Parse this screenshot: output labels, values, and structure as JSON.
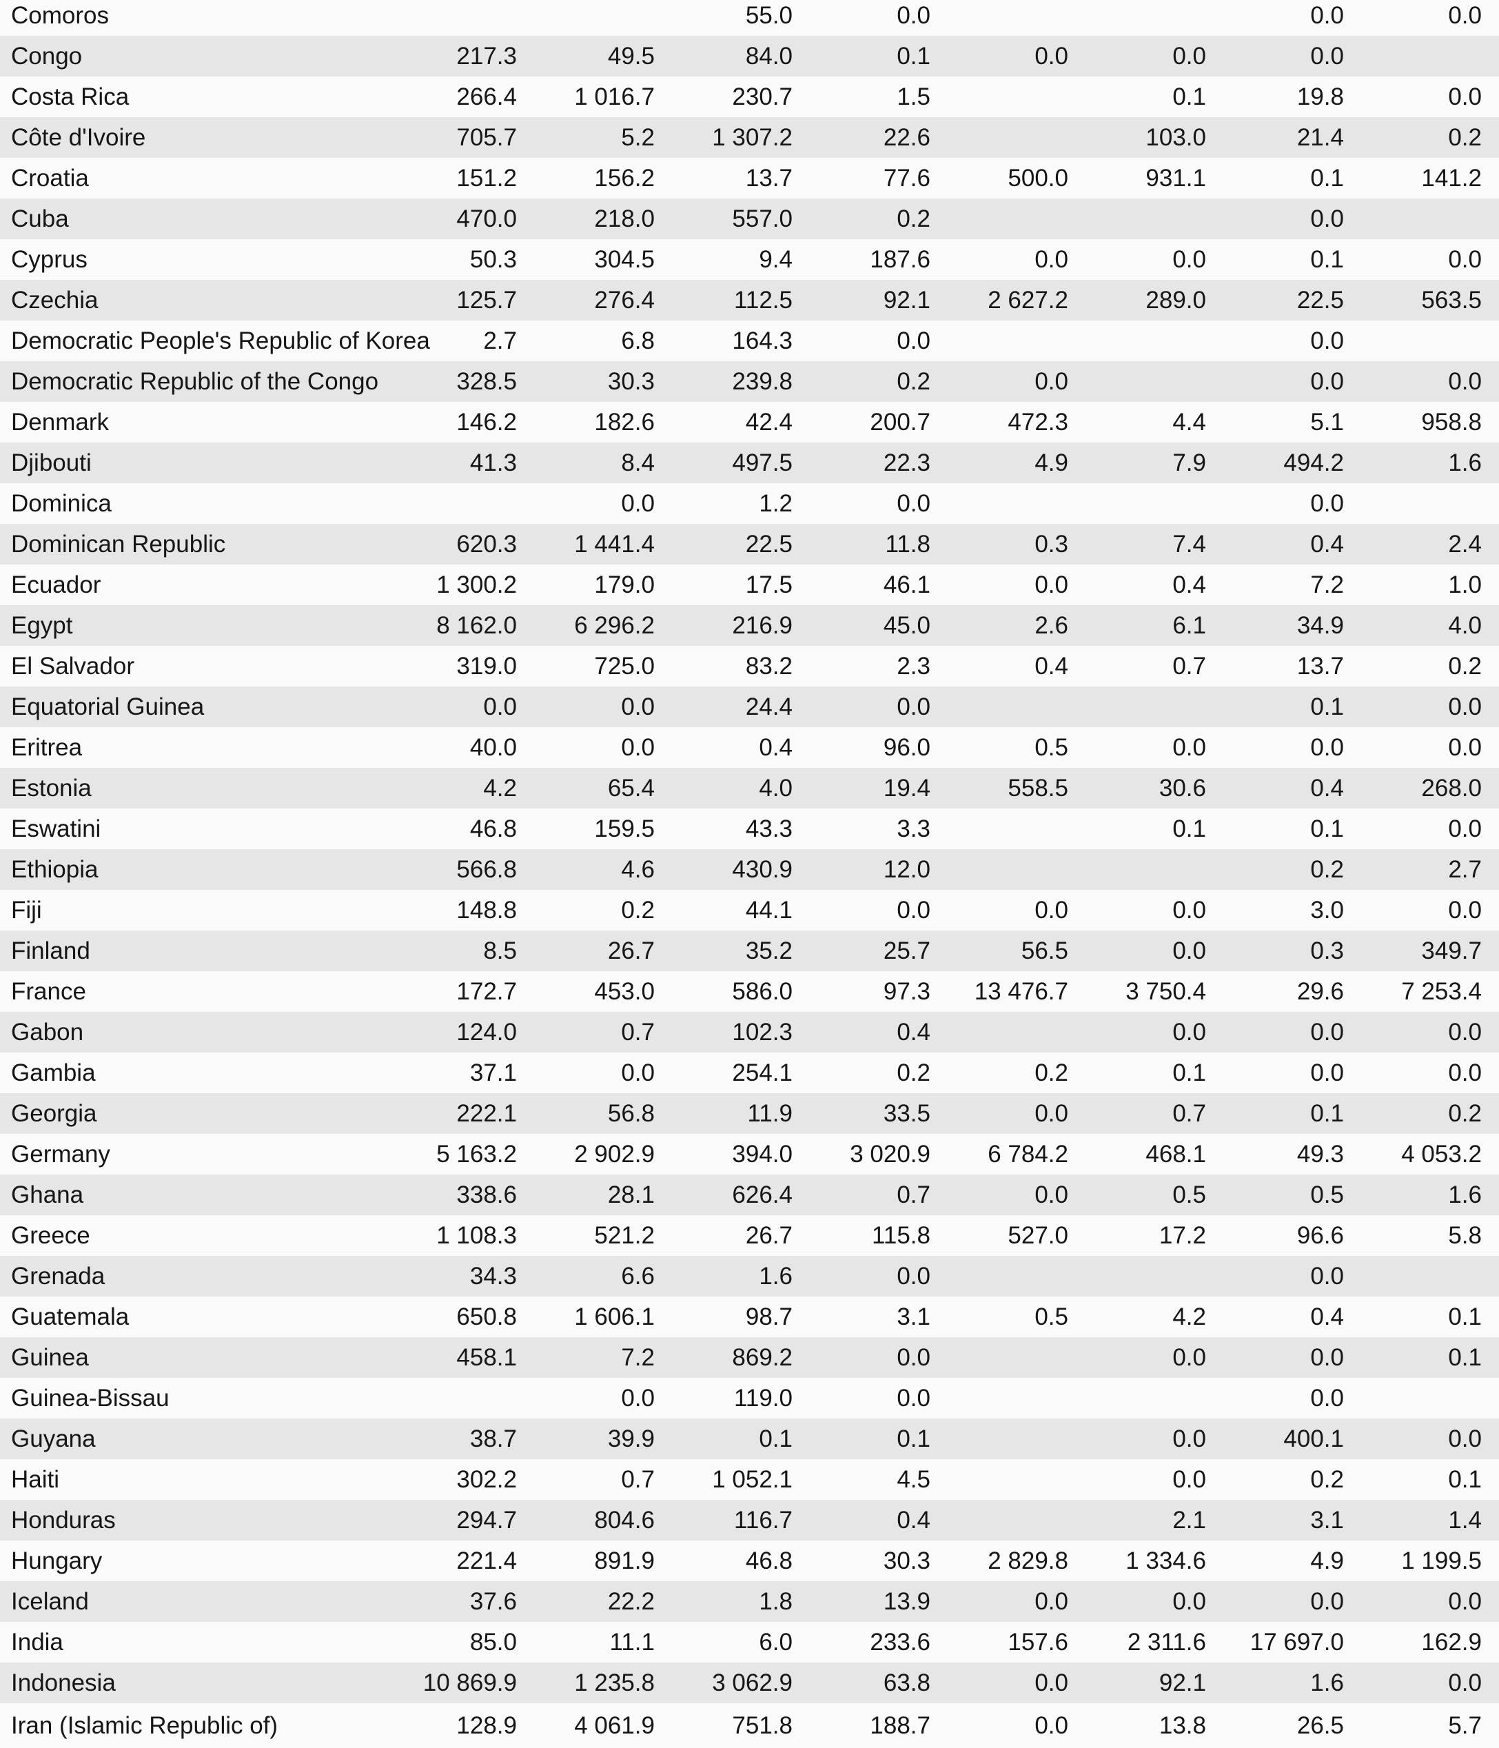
{
  "style": {
    "row_color_odd": "#fafafa",
    "row_color_even": "#e6e6e6",
    "text_color": "#161616"
  },
  "table": {
    "value_columns_count": 8,
    "rows": [
      {
        "country": "Comoros",
        "values": [
          "",
          "",
          "55.0",
          "0.0",
          "",
          "",
          "0.0",
          "0.0"
        ]
      },
      {
        "country": "Congo",
        "values": [
          "217.3",
          "49.5",
          "84.0",
          "0.1",
          "0.0",
          "0.0",
          "0.0",
          ""
        ]
      },
      {
        "country": "Costa Rica",
        "values": [
          "266.4",
          "1 016.7",
          "230.7",
          "1.5",
          "",
          "0.1",
          "19.8",
          "0.0"
        ]
      },
      {
        "country": "Côte d'Ivoire",
        "values": [
          "705.7",
          "5.2",
          "1 307.2",
          "22.6",
          "",
          "103.0",
          "21.4",
          "0.2"
        ]
      },
      {
        "country": "Croatia",
        "values": [
          "151.2",
          "156.2",
          "13.7",
          "77.6",
          "500.0",
          "931.1",
          "0.1",
          "141.2"
        ]
      },
      {
        "country": "Cuba",
        "values": [
          "470.0",
          "218.0",
          "557.0",
          "0.2",
          "",
          "",
          "0.0",
          ""
        ]
      },
      {
        "country": "Cyprus",
        "values": [
          "50.3",
          "304.5",
          "9.4",
          "187.6",
          "0.0",
          "0.0",
          "0.1",
          "0.0"
        ]
      },
      {
        "country": "Czechia",
        "values": [
          "125.7",
          "276.4",
          "112.5",
          "92.1",
          "2 627.2",
          "289.0",
          "22.5",
          "563.5"
        ]
      },
      {
        "country": "Democratic People's Republic of Korea",
        "values": [
          "2.7",
          "6.8",
          "164.3",
          "0.0",
          "",
          "",
          "0.0",
          ""
        ]
      },
      {
        "country": "Democratic Republic of the Congo",
        "values": [
          "328.5",
          "30.3",
          "239.8",
          "0.2",
          "0.0",
          "",
          "0.0",
          "0.0"
        ]
      },
      {
        "country": "Denmark",
        "values": [
          "146.2",
          "182.6",
          "42.4",
          "200.7",
          "472.3",
          "4.4",
          "5.1",
          "958.8"
        ]
      },
      {
        "country": "Djibouti",
        "values": [
          "41.3",
          "8.4",
          "497.5",
          "22.3",
          "4.9",
          "7.9",
          "494.2",
          "1.6"
        ]
      },
      {
        "country": "Dominica",
        "values": [
          "",
          "0.0",
          "1.2",
          "0.0",
          "",
          "",
          "0.0",
          ""
        ]
      },
      {
        "country": "Dominican Republic",
        "values": [
          "620.3",
          "1 441.4",
          "22.5",
          "11.8",
          "0.3",
          "7.4",
          "0.4",
          "2.4"
        ]
      },
      {
        "country": "Ecuador",
        "values": [
          "1 300.2",
          "179.0",
          "17.5",
          "46.1",
          "0.0",
          "0.4",
          "7.2",
          "1.0"
        ]
      },
      {
        "country": "Egypt",
        "values": [
          "8 162.0",
          "6 296.2",
          "216.9",
          "45.0",
          "2.6",
          "6.1",
          "34.9",
          "4.0"
        ]
      },
      {
        "country": "El Salvador",
        "values": [
          "319.0",
          "725.0",
          "83.2",
          "2.3",
          "0.4",
          "0.7",
          "13.7",
          "0.2"
        ]
      },
      {
        "country": "Equatorial Guinea",
        "values": [
          "0.0",
          "0.0",
          "24.4",
          "0.0",
          "",
          "",
          "0.1",
          "0.0"
        ]
      },
      {
        "country": "Eritrea",
        "values": [
          "40.0",
          "0.0",
          "0.4",
          "96.0",
          "0.5",
          "0.0",
          "0.0",
          "0.0"
        ]
      },
      {
        "country": "Estonia",
        "values": [
          "4.2",
          "65.4",
          "4.0",
          "19.4",
          "558.5",
          "30.6",
          "0.4",
          "268.0"
        ]
      },
      {
        "country": "Eswatini",
        "values": [
          "46.8",
          "159.5",
          "43.3",
          "3.3",
          "",
          "0.1",
          "0.1",
          "0.0"
        ]
      },
      {
        "country": "Ethiopia",
        "values": [
          "566.8",
          "4.6",
          "430.9",
          "12.0",
          "",
          "",
          "0.2",
          "2.7"
        ]
      },
      {
        "country": "Fiji",
        "values": [
          "148.8",
          "0.2",
          "44.1",
          "0.0",
          "0.0",
          "0.0",
          "3.0",
          "0.0"
        ]
      },
      {
        "country": "Finland",
        "values": [
          "8.5",
          "26.7",
          "35.2",
          "25.7",
          "56.5",
          "0.0",
          "0.3",
          "349.7"
        ]
      },
      {
        "country": "France",
        "values": [
          "172.7",
          "453.0",
          "586.0",
          "97.3",
          "13 476.7",
          "3 750.4",
          "29.6",
          "7 253.4"
        ]
      },
      {
        "country": "Gabon",
        "values": [
          "124.0",
          "0.7",
          "102.3",
          "0.4",
          "",
          "0.0",
          "0.0",
          "0.0"
        ]
      },
      {
        "country": "Gambia",
        "values": [
          "37.1",
          "0.0",
          "254.1",
          "0.2",
          "0.2",
          "0.1",
          "0.0",
          "0.0"
        ]
      },
      {
        "country": "Georgia",
        "values": [
          "222.1",
          "56.8",
          "11.9",
          "33.5",
          "0.0",
          "0.7",
          "0.1",
          "0.2"
        ]
      },
      {
        "country": "Germany",
        "values": [
          "5 163.2",
          "2 902.9",
          "394.0",
          "3 020.9",
          "6 784.2",
          "468.1",
          "49.3",
          "4 053.2"
        ]
      },
      {
        "country": "Ghana",
        "values": [
          "338.6",
          "28.1",
          "626.4",
          "0.7",
          "0.0",
          "0.5",
          "0.5",
          "1.6"
        ]
      },
      {
        "country": "Greece",
        "values": [
          "1 108.3",
          "521.2",
          "26.7",
          "115.8",
          "527.0",
          "17.2",
          "96.6",
          "5.8"
        ]
      },
      {
        "country": "Grenada",
        "values": [
          "34.3",
          "6.6",
          "1.6",
          "0.0",
          "",
          "",
          "0.0",
          ""
        ]
      },
      {
        "country": "Guatemala",
        "values": [
          "650.8",
          "1 606.1",
          "98.7",
          "3.1",
          "0.5",
          "4.2",
          "0.4",
          "0.1"
        ]
      },
      {
        "country": "Guinea",
        "values": [
          "458.1",
          "7.2",
          "869.2",
          "0.0",
          "",
          "0.0",
          "0.0",
          "0.1"
        ]
      },
      {
        "country": "Guinea-Bissau",
        "values": [
          "",
          "0.0",
          "119.0",
          "0.0",
          "",
          "",
          "0.0",
          ""
        ]
      },
      {
        "country": "Guyana",
        "values": [
          "38.7",
          "39.9",
          "0.1",
          "0.1",
          "",
          "0.0",
          "400.1",
          "0.0"
        ]
      },
      {
        "country": "Haiti",
        "values": [
          "302.2",
          "0.7",
          "1 052.1",
          "4.5",
          "",
          "0.0",
          "0.2",
          "0.1"
        ]
      },
      {
        "country": "Honduras",
        "values": [
          "294.7",
          "804.6",
          "116.7",
          "0.4",
          "",
          "2.1",
          "3.1",
          "1.4"
        ]
      },
      {
        "country": "Hungary",
        "values": [
          "221.4",
          "891.9",
          "46.8",
          "30.3",
          "2 829.8",
          "1 334.6",
          "4.9",
          "1 199.5"
        ]
      },
      {
        "country": "Iceland",
        "values": [
          "37.6",
          "22.2",
          "1.8",
          "13.9",
          "0.0",
          "0.0",
          "0.0",
          "0.0"
        ]
      },
      {
        "country": "India",
        "values": [
          "85.0",
          "11.1",
          "6.0",
          "233.6",
          "157.6",
          "2 311.6",
          "17 697.0",
          "162.9"
        ]
      },
      {
        "country": "Indonesia",
        "values": [
          "10 869.9",
          "1 235.8",
          "3 062.9",
          "63.8",
          "0.0",
          "92.1",
          "1.6",
          "0.0"
        ]
      },
      {
        "country": "Iran (Islamic Republic of)",
        "values": [
          "128.9",
          "4 061.9",
          "751.8",
          "188.7",
          "0.0",
          "13.8",
          "26.5",
          "5.7"
        ]
      }
    ]
  }
}
